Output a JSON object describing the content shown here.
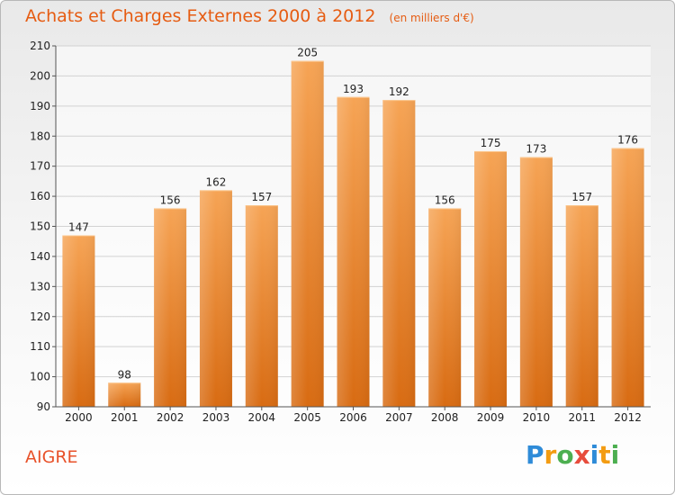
{
  "title": "Achats et Charges Externes 2000 à 2012",
  "subtitle": "(en milliers d'€)",
  "commune": "AIGRE",
  "logo": {
    "text": "Proxiti",
    "letters": [
      "P",
      "r",
      "o",
      "x",
      "i",
      "t",
      "i"
    ],
    "colors": [
      "#2e8bd8",
      "#f39c12",
      "#4caf50",
      "#e74c3c",
      "#2e8bd8",
      "#f39c12",
      "#4caf50"
    ]
  },
  "colors": {
    "bar_top": "#f6a455",
    "bar_bottom": "#d86b12",
    "title": "#e65c12",
    "commune": "#e8522a"
  },
  "chart_data": {
    "type": "bar",
    "title": "Achats et Charges Externes 2000 à 2012",
    "subtitle": "(en milliers d'€)",
    "categories": [
      "2000",
      "2001",
      "2002",
      "2003",
      "2004",
      "2005",
      "2006",
      "2007",
      "2008",
      "2009",
      "2010",
      "2011",
      "2012"
    ],
    "values": [
      147,
      98,
      156,
      162,
      157,
      205,
      193,
      192,
      156,
      175,
      173,
      157,
      176
    ],
    "ylim": [
      90,
      210
    ],
    "yticks": [
      90,
      100,
      110,
      120,
      130,
      140,
      150,
      160,
      170,
      180,
      190,
      200,
      210
    ],
    "grid": true,
    "xlabel": "",
    "ylabel": ""
  }
}
